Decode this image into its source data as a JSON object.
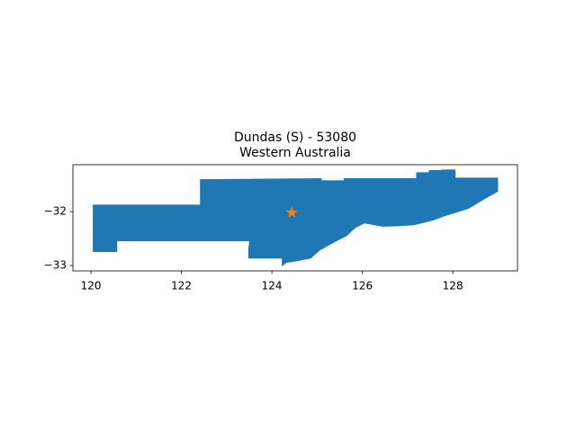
{
  "chart_data": {
    "type": "map",
    "title": "Dundas (S) - 53080",
    "subtitle": "Western Australia",
    "xlim": [
      119.6,
      129.43
    ],
    "ylim": [
      -33.1,
      -31.13
    ],
    "xticks": [
      120,
      122,
      124,
      126,
      128
    ],
    "yticks": [
      {
        "value": -32,
        "label": "−32"
      },
      {
        "value": -33,
        "label": "−33"
      }
    ],
    "region": {
      "color": "#1f77b4",
      "x": [
        120.04,
        122.41,
        122.41,
        125.1,
        125.1,
        125.59,
        125.59,
        127.19,
        127.19,
        127.47,
        127.47,
        127.75,
        127.75,
        128.06,
        128.06,
        129.0,
        129.0,
        128.74,
        128.34,
        127.84,
        127.55,
        127.15,
        126.85,
        126.45,
        126.05,
        125.85,
        125.66,
        125.36,
        125.06,
        124.86,
        124.56,
        124.32,
        124.22,
        124.22,
        123.48,
        123.48,
        123.5,
        120.58,
        120.58,
        120.04
      ],
      "y": [
        -31.87,
        -31.87,
        -31.4,
        -31.38,
        -31.42,
        -31.42,
        -31.38,
        -31.38,
        -31.27,
        -31.27,
        -31.23,
        -31.23,
        -31.22,
        -31.22,
        -31.37,
        -31.37,
        -31.63,
        -31.75,
        -31.95,
        -32.08,
        -32.17,
        -32.25,
        -32.27,
        -32.28,
        -32.22,
        -32.3,
        -32.45,
        -32.58,
        -32.72,
        -32.87,
        -32.92,
        -32.95,
        -33.02,
        -32.87,
        -32.87,
        -32.68,
        -32.55,
        -32.55,
        -32.75,
        -32.75
      ]
    },
    "marker": {
      "x": 124.44,
      "y": -32.02,
      "color": "#ff7f0e"
    }
  }
}
